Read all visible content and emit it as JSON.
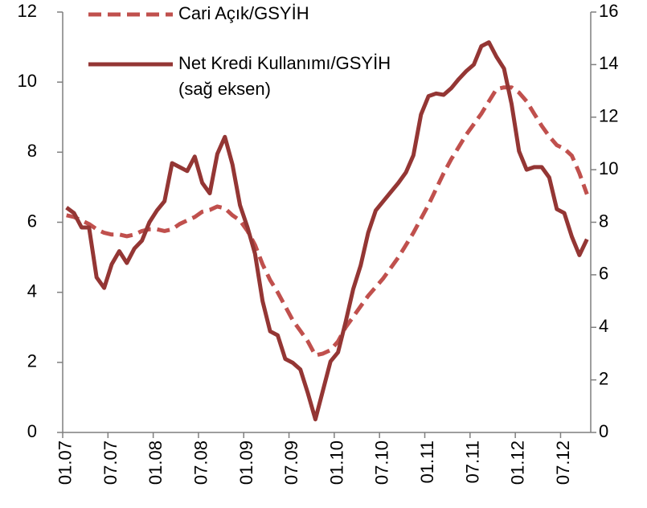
{
  "chart_data": {
    "type": "line",
    "categories": [
      "01.07",
      null,
      null,
      null,
      null,
      null,
      "07.07",
      null,
      null,
      null,
      null,
      null,
      "01.08",
      null,
      null,
      null,
      null,
      null,
      "07.08",
      null,
      null,
      null,
      null,
      null,
      "01.09",
      null,
      null,
      null,
      null,
      null,
      "07.09",
      null,
      null,
      null,
      null,
      null,
      "01.10",
      null,
      null,
      null,
      null,
      null,
      "07.10",
      null,
      null,
      null,
      null,
      null,
      "01.11",
      null,
      null,
      null,
      null,
      null,
      "07.11",
      null,
      null,
      null,
      null,
      null,
      "01.12",
      null,
      null,
      null,
      null,
      null,
      "07.12",
      null,
      null,
      null
    ],
    "series": [
      {
        "name": "Cari Açık/GSYİH",
        "color": "#c0504d",
        "dash": true,
        "values": [
          6.2,
          6.15,
          6.05,
          5.95,
          5.8,
          5.7,
          5.65,
          5.65,
          5.6,
          5.65,
          5.75,
          5.8,
          5.8,
          5.75,
          5.8,
          5.95,
          6.05,
          6.15,
          6.3,
          6.35,
          6.45,
          6.4,
          6.2,
          6.05,
          5.75,
          5.35,
          4.8,
          4.35,
          4.0,
          3.6,
          3.2,
          2.9,
          2.6,
          2.2,
          2.25,
          2.35,
          2.6,
          3.0,
          3.3,
          3.6,
          3.9,
          4.15,
          4.4,
          4.7,
          5.0,
          5.35,
          5.7,
          6.1,
          6.5,
          6.95,
          7.4,
          7.8,
          8.15,
          8.5,
          8.8,
          9.1,
          9.45,
          9.8,
          9.85,
          9.85,
          9.7,
          9.45,
          9.1,
          8.75,
          8.45,
          8.2,
          8.1,
          7.9,
          7.4,
          6.8
        ]
      },
      {
        "name": "Net Kredi Kullanımı/GSYİH",
        "color": "#943634",
        "dash": false,
        "axis": "y2",
        "values": [
          8.56,
          8.35,
          7.8,
          7.8,
          5.9,
          5.5,
          6.4,
          6.9,
          6.45,
          7.0,
          7.3,
          8.0,
          8.45,
          8.8,
          10.25,
          10.1,
          9.95,
          10.5,
          9.5,
          9.1,
          10.6,
          11.25,
          10.2,
          8.65,
          7.8,
          6.8,
          5.0,
          3.85,
          3.7,
          2.8,
          2.65,
          2.4,
          1.5,
          0.5,
          1.6,
          2.7,
          3.05,
          4.2,
          5.45,
          6.35,
          7.6,
          8.45,
          8.8,
          9.15,
          9.5,
          9.9,
          10.55,
          12.1,
          12.8,
          12.9,
          12.85,
          13.1,
          13.45,
          13.75,
          14.0,
          14.7,
          14.85,
          14.3,
          13.85,
          12.5,
          10.7,
          10.0,
          10.1,
          10.1,
          9.7,
          8.5,
          8.35,
          7.45,
          6.75,
          7.35
        ]
      }
    ],
    "legend_note": "(sağ eksen)",
    "ylim": [
      0,
      12
    ],
    "yticks": [
      0,
      2,
      4,
      6,
      8,
      10,
      12
    ],
    "y2lim": [
      0,
      16
    ],
    "y2ticks": [
      0,
      2,
      4,
      6,
      8,
      10,
      12,
      14,
      16
    ],
    "legend": "top-left",
    "grid": false
  }
}
